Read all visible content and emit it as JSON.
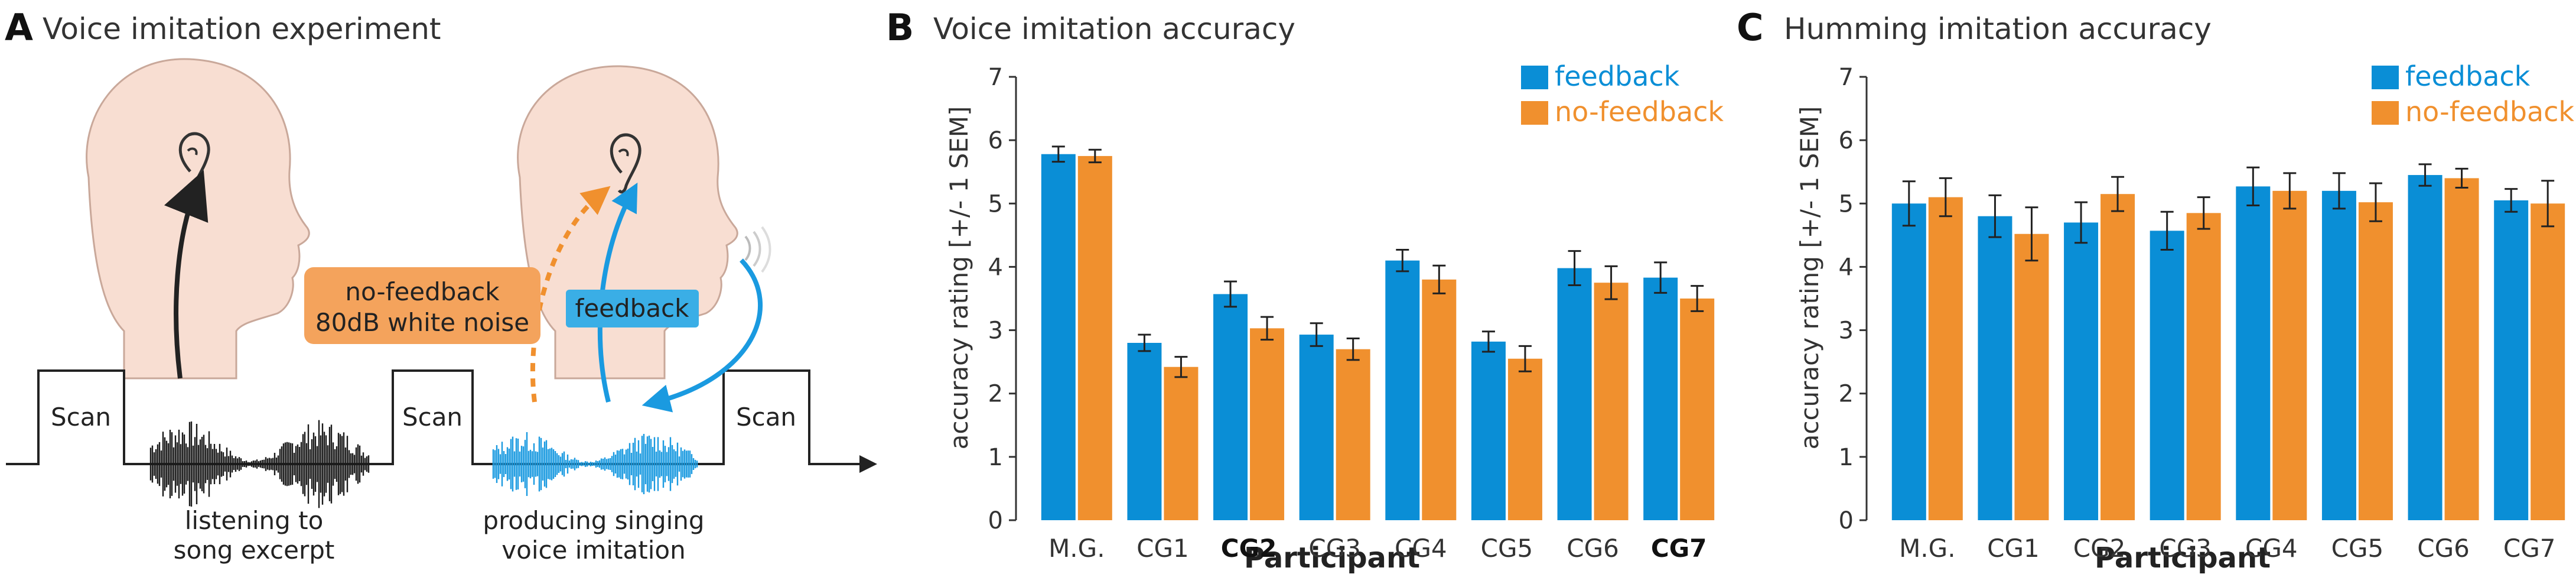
{
  "colors": {
    "feedback": "#0a8ed6",
    "no_feedback": "#f0902e",
    "feedback_box": "#3aaee6",
    "no_feedback_box": "#f4a35c",
    "skin": "#f8ded2",
    "axis": "#333333",
    "waveform_listen": "#1a1a1a",
    "waveform_produce": "#1a9ae0"
  },
  "panel_a": {
    "letter": "A",
    "title": "Voice imitation experiment",
    "scan_label": "Scan",
    "no_feedback_line1": "no-feedback",
    "no_feedback_line2": "80dB white noise",
    "feedback_label": "feedback",
    "listen_line1": "listening to",
    "listen_line2": "song excerpt",
    "produce_line1": "producing singing",
    "produce_line2": "voice imitation"
  },
  "chart_data": [
    {
      "panel": "B",
      "type": "bar",
      "title": "Voice imitation accuracy",
      "xlabel": "Participant",
      "ylabel": "accuracy rating [+/- 1 SEM]",
      "ylim": [
        0,
        7
      ],
      "yticks": [
        "0",
        "1",
        "2",
        "3",
        "4",
        "5",
        "6",
        "7"
      ],
      "categories": [
        "M.G.",
        "CG1",
        "CG2",
        "CG3",
        "CG4",
        "CG5",
        "CG6",
        "CG7"
      ],
      "bold_categories": [
        "CG2",
        "CG7"
      ],
      "legend_position": "top-right",
      "series": [
        {
          "name": "feedback",
          "values": [
            5.78,
            2.8,
            3.57,
            2.93,
            4.1,
            2.82,
            3.98,
            3.83
          ],
          "errors": [
            0.12,
            0.13,
            0.2,
            0.18,
            0.17,
            0.16,
            0.27,
            0.24
          ]
        },
        {
          "name": "no-feedback",
          "values": [
            5.75,
            2.42,
            3.03,
            2.7,
            3.8,
            2.55,
            3.75,
            3.5
          ],
          "errors": [
            0.1,
            0.16,
            0.18,
            0.17,
            0.22,
            0.2,
            0.26,
            0.2
          ]
        }
      ]
    },
    {
      "panel": "C",
      "type": "bar",
      "title": "Humming imitation accuracy",
      "xlabel": "Participant",
      "ylabel": "accuracy rating [+/- 1 SEM]",
      "ylim": [
        0,
        7
      ],
      "yticks": [
        "0",
        "1",
        "2",
        "3",
        "4",
        "5",
        "6",
        "7"
      ],
      "categories": [
        "M.G.",
        "CG1",
        "CG2",
        "CG3",
        "CG4",
        "CG5",
        "CG6",
        "CG7"
      ],
      "bold_categories": [],
      "legend_position": "top-right",
      "series": [
        {
          "name": "feedback",
          "values": [
            5.0,
            4.8,
            4.7,
            4.57,
            5.27,
            5.2,
            5.45,
            5.05
          ],
          "errors": [
            0.35,
            0.33,
            0.32,
            0.3,
            0.3,
            0.28,
            0.17,
            0.18
          ]
        },
        {
          "name": "no-feedback",
          "values": [
            5.1,
            4.52,
            5.15,
            4.85,
            5.2,
            5.02,
            5.4,
            5.0
          ],
          "errors": [
            0.3,
            0.42,
            0.27,
            0.25,
            0.28,
            0.3,
            0.15,
            0.36
          ]
        }
      ]
    }
  ]
}
